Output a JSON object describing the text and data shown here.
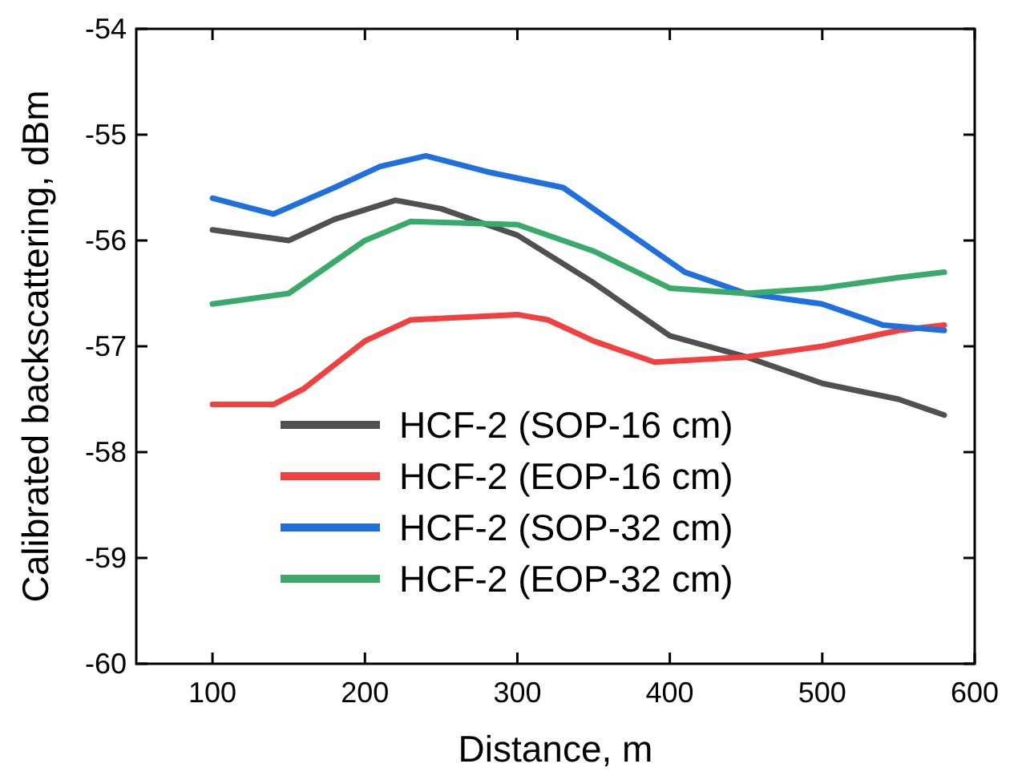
{
  "chart_data": {
    "type": "line",
    "xlabel": "Distance, m",
    "ylabel": "Calibrated backscattering, dBm",
    "xlim": [
      50,
      600
    ],
    "xticks": [
      100,
      200,
      300,
      400,
      500,
      600
    ],
    "ylim": [
      -60,
      -54
    ],
    "yticks": [
      -60,
      -59,
      -58,
      -57,
      -56,
      -55,
      -54
    ],
    "legend": "bottom",
    "grid": false,
    "line_style": "solid",
    "x": [
      100,
      150,
      180,
      220,
      250,
      280,
      300,
      350,
      400,
      450,
      500,
      550,
      580
    ],
    "series": [
      {
        "name": "HCF-2 (SOP-16 cm)",
        "color": "#505050",
        "values": [
          -55.9,
          -56.0,
          -55.8,
          -55.62,
          -55.7,
          -55.85,
          -55.95,
          -56.4,
          -56.9,
          -57.1,
          -57.35,
          -57.5,
          -57.65
        ]
      },
      {
        "name": "HCF-2 (EOP-16 cm)",
        "color": "#f04040",
        "x": [
          100,
          140,
          160,
          200,
          230,
          300,
          320,
          350,
          390,
          450,
          500,
          550,
          580
        ],
        "values": [
          -57.55,
          -57.55,
          -57.4,
          -56.95,
          -56.75,
          -56.7,
          -56.75,
          -56.95,
          -57.15,
          -57.1,
          -57.0,
          -56.85,
          -56.8
        ]
      },
      {
        "name": "HCF-2 (SOP-32 cm)",
        "color": "#1f6fdf",
        "x": [
          100,
          140,
          180,
          210,
          240,
          280,
          330,
          370,
          410,
          450,
          500,
          540,
          580
        ],
        "values": [
          -55.6,
          -55.75,
          -55.5,
          -55.3,
          -55.2,
          -55.35,
          -55.5,
          -55.9,
          -56.3,
          -56.5,
          -56.6,
          -56.8,
          -56.85
        ]
      },
      {
        "name": "HCF-2 (EOP-32 cm)",
        "color": "#3aaa6a",
        "x": [
          100,
          150,
          200,
          230,
          300,
          350,
          400,
          450,
          500,
          550,
          580
        ],
        "values": [
          -56.6,
          -56.5,
          -56.0,
          -55.82,
          -55.85,
          -56.1,
          -56.45,
          -56.5,
          -56.45,
          -56.35,
          -56.3
        ]
      }
    ]
  }
}
